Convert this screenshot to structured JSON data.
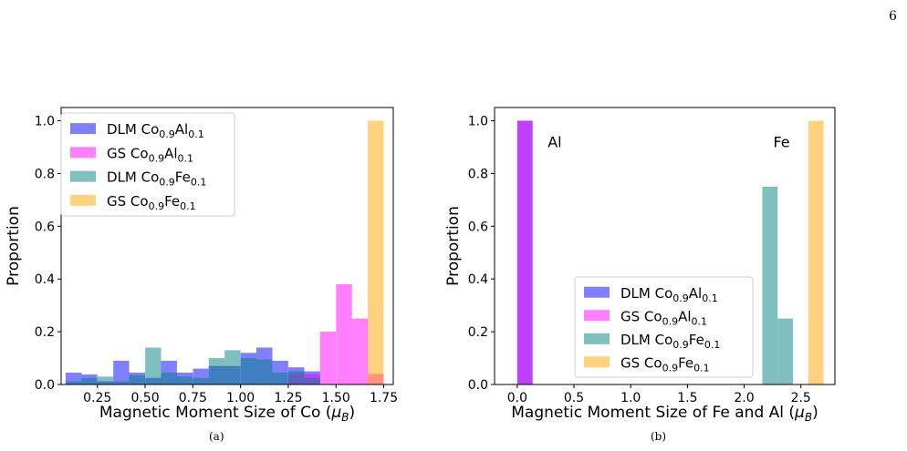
{
  "page": {
    "number": "6"
  },
  "captions": {
    "a": "(a)",
    "b": "(b)"
  },
  "colors": {
    "dlm_al": "#0000ff",
    "gs_al": "#ff00ff",
    "dlm_fe": "#008080",
    "gs_fe": "#ffa500"
  },
  "chart_data": [
    {
      "type": "bar",
      "ylabel": "Proportion",
      "xlabel_prefix": "Magnetic Moment Size of Co (",
      "xlabel_mu": "μ",
      "xlabel_sub": "B",
      "xlabel_suffix": ")",
      "xlim": [
        0.06,
        1.8
      ],
      "ylim": [
        0,
        1.05
      ],
      "xticks": [
        "0.25",
        "0.50",
        "0.75",
        "1.00",
        "1.25",
        "1.50",
        "1.75"
      ],
      "yticks": [
        "0.0",
        "0.2",
        "0.4",
        "0.6",
        "0.8",
        "1.0"
      ],
      "bin_width": 0.0833,
      "legend_position": "upper-left",
      "series": [
        {
          "key": "dlm_al",
          "name": "DLM Co0.9Al0.1",
          "base": "DLM Co",
          "sub1": "0.9",
          "el": "Al",
          "sub2": "0.1",
          "opacity": 0.5,
          "x": [
            0.125,
            0.208,
            0.292,
            0.375,
            0.458,
            0.542,
            0.625,
            0.708,
            0.792,
            0.875,
            0.958,
            1.042,
            1.125,
            1.208,
            1.292,
            1.375
          ],
          "values": [
            0.045,
            0.038,
            0.012,
            0.09,
            0.045,
            0.025,
            0.09,
            0.045,
            0.06,
            0.07,
            0.07,
            0.12,
            0.14,
            0.09,
            0.065,
            0.05
          ]
        },
        {
          "key": "gs_al",
          "name": "GS Co0.9Al0.1",
          "base": "GS Co",
          "sub1": "0.9",
          "el": "Al",
          "sub2": "0.1",
          "opacity": 0.5,
          "x": [
            1.292,
            1.375,
            1.458,
            1.542,
            1.625,
            1.708
          ],
          "values": [
            0.04,
            0.04,
            0.2,
            0.38,
            0.25,
            0.04
          ]
        },
        {
          "key": "dlm_fe",
          "name": "DLM Co0.9Fe0.1",
          "base": "DLM Co",
          "sub1": "0.9",
          "el": "Fe",
          "sub2": "0.1",
          "opacity": 0.5,
          "x": [
            0.125,
            0.208,
            0.292,
            0.375,
            0.458,
            0.542,
            0.625,
            0.708,
            0.792,
            0.875,
            0.958,
            1.042,
            1.125,
            1.208,
            1.292,
            1.375
          ],
          "values": [
            0.012,
            0.025,
            0.03,
            0.012,
            0.035,
            0.14,
            0.045,
            0.03,
            0.025,
            0.1,
            0.13,
            0.1,
            0.095,
            0.045,
            0.05,
            0.025
          ]
        },
        {
          "key": "gs_fe",
          "name": "GS Co0.9Fe0.1",
          "base": "GS Co",
          "sub1": "0.9",
          "el": "Fe",
          "sub2": "0.1",
          "opacity": 0.5,
          "x": [
            1.708
          ],
          "values": [
            1.0
          ]
        }
      ]
    },
    {
      "type": "bar",
      "ylabel": "Proportion",
      "xlabel_prefix": "Magnetic Moment Size of Fe and Al (",
      "xlabel_mu": "μ",
      "xlabel_sub": "B",
      "xlabel_suffix": ")",
      "xlim": [
        -0.2,
        2.8
      ],
      "ylim": [
        0,
        1.05
      ],
      "xticks": [
        "0.0",
        "0.5",
        "1.0",
        "1.5",
        "2.0",
        "2.5"
      ],
      "xtick_values": [
        0,
        0.5,
        1.0,
        1.5,
        2.0,
        2.5
      ],
      "yticks": [
        "0.0",
        "0.2",
        "0.4",
        "0.6",
        "0.8",
        "1.0"
      ],
      "bin_width": 0.135,
      "legend_position": "lower-center",
      "annotations": [
        {
          "text": "Al",
          "x": 0.33,
          "y": 0.92
        },
        {
          "text": "Fe",
          "x": 2.33,
          "y": 0.92
        }
      ],
      "series": [
        {
          "key": "dlm_al",
          "name": "DLM Co0.9Al0.1",
          "base": "DLM Co",
          "sub1": "0.9",
          "el": "Al",
          "sub2": "0.1",
          "opacity": 0.5,
          "x": [
            0.0675
          ],
          "values": [
            1.0
          ]
        },
        {
          "key": "gs_al",
          "name": "GS Co0.9Al0.1",
          "base": "GS Co",
          "sub1": "0.9",
          "el": "Al",
          "sub2": "0.1",
          "opacity": 0.5,
          "x": [
            0.0675
          ],
          "values": [
            1.0
          ]
        },
        {
          "key": "dlm_fe",
          "name": "DLM Co0.9Fe0.1",
          "base": "DLM Co",
          "sub1": "0.9",
          "el": "Fe",
          "sub2": "0.1",
          "opacity": 0.5,
          "x": [
            2.2275,
            2.3625
          ],
          "values": [
            0.75,
            0.25
          ]
        },
        {
          "key": "gs_fe",
          "name": "GS Co0.9Fe0.1",
          "base": "GS Co",
          "sub1": "0.9",
          "el": "Fe",
          "sub2": "0.1",
          "opacity": 0.5,
          "x": [
            2.6325
          ],
          "values": [
            1.0
          ]
        }
      ]
    }
  ]
}
